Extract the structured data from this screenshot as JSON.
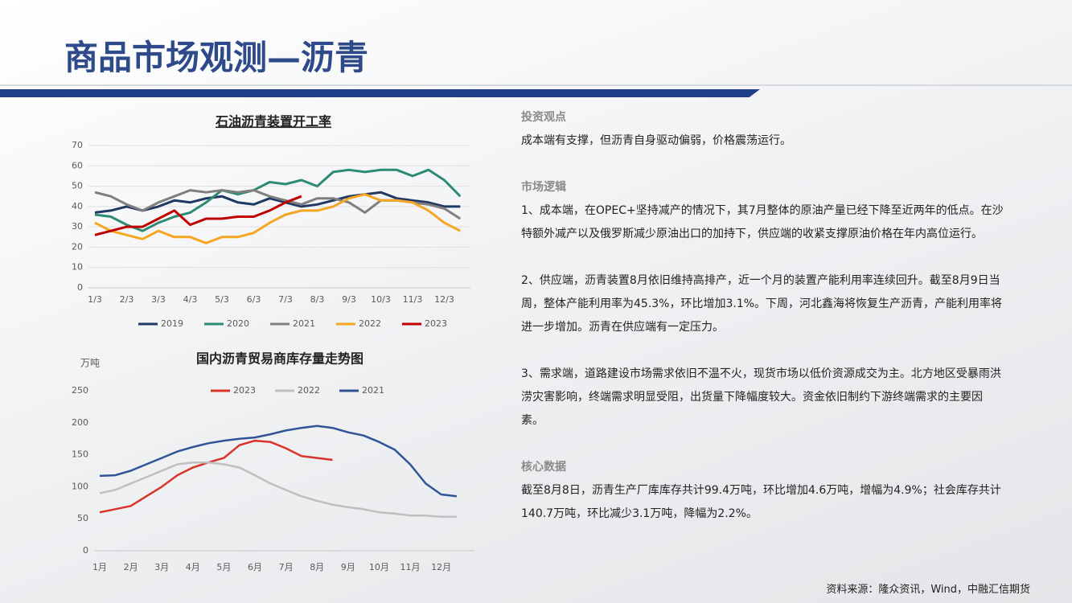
{
  "title": "商品市场观测—沥青",
  "source": "资料来源：隆众资讯，Wind，中融汇信期货",
  "sections": [
    {
      "heading": "投资观点",
      "paragraphs": [
        "成本端有支撑，但沥青自身驱动偏弱，价格震荡运行。"
      ]
    },
    {
      "heading": "市场逻辑",
      "paragraphs": [
        "1、成本端，在OPEC+坚持减产的情况下，其7月整体的原油产量已经下降至近两年的低点。在沙特额外减产以及俄罗斯减少原油出口的加持下，供应端的收紧支撑原油价格在年内高位运行。",
        "2、供应端，沥青装置8月依旧维持高排产，近一个月的装置产能利用率连续回升。截至8月9日当周，整体产能利用率为45.3%，环比增加3.1%。下周，河北鑫海将恢复生产沥青，产能利用率将进一步增加。沥青在供应端有一定压力。",
        "3、需求端，道路建设市场需求依旧不温不火，现货市场以低价资源成交为主。北方地区受暴雨洪涝灾害影响，终端需求明显受阻，出货量下降幅度较大。资金依旧制约下游终端需求的主要因素。"
      ]
    },
    {
      "heading": "核心数据",
      "paragraphs": [
        "截至8月8日，沥青生产厂库库存共计99.4万吨，环比增加4.6万吨，增幅为4.9%；社会库存共计140.7万吨，环比减少3.1万吨，降幅为2.2%。"
      ]
    }
  ],
  "chart_data": [
    {
      "type": "line",
      "title": "石油沥青装置开工率",
      "categories": [
        "1/3",
        null,
        "2/3",
        null,
        "3/3",
        null,
        "4/3",
        null,
        "5/3",
        null,
        "6/3",
        null,
        "7/3",
        null,
        "8/3",
        null,
        "9/3",
        null,
        "10/3",
        null,
        "11/3",
        null,
        "12/3",
        null
      ],
      "ylim": [
        0,
        70
      ],
      "yticks": [
        0,
        10,
        20,
        30,
        40,
        50,
        60,
        70
      ],
      "grid": true,
      "legend": "bottom",
      "series": [
        {
          "name": "2019",
          "color": "#1f3864",
          "values": [
            37,
            38,
            40,
            38,
            40,
            43,
            42,
            44,
            45,
            42,
            41,
            44,
            42,
            40,
            41,
            43,
            45,
            46,
            47,
            44,
            43,
            42,
            40,
            40
          ]
        },
        {
          "name": "2020",
          "color": "#2e8b73",
          "values": [
            36,
            35,
            31,
            28,
            32,
            35,
            37,
            42,
            48,
            46,
            48,
            52,
            51,
            53,
            50,
            57,
            58,
            57,
            58,
            58,
            55,
            58,
            53,
            45
          ]
        },
        {
          "name": "2021",
          "color": "#7f7f7f",
          "values": [
            47,
            45,
            41,
            38,
            42,
            45,
            48,
            47,
            48,
            47,
            48,
            45,
            43,
            41,
            44,
            44,
            42,
            37,
            43,
            43,
            42,
            41,
            39,
            34
          ]
        },
        {
          "name": "2022",
          "color": "#f5a623",
          "values": [
            32,
            28,
            26,
            24,
            28,
            25,
            25,
            22,
            25,
            25,
            27,
            32,
            36,
            38,
            38,
            40,
            44,
            46,
            43,
            43,
            42,
            38,
            32,
            28
          ]
        },
        {
          "name": "2023",
          "color": "#c00000",
          "values": [
            26,
            28,
            30,
            30,
            34,
            38,
            31,
            34,
            34,
            35,
            35,
            38,
            42,
            45,
            null,
            null,
            null,
            null,
            null,
            null,
            null,
            null,
            null,
            null
          ]
        }
      ]
    },
    {
      "type": "line",
      "title": "国内沥青贸易商库存量走势图",
      "y_label": "万吨",
      "categories": [
        "1月",
        null,
        "2月",
        null,
        "3月",
        null,
        "4月",
        null,
        "5月",
        null,
        "6月",
        null,
        "7月",
        null,
        "8月",
        null,
        "9月",
        null,
        "10月",
        null,
        "11月",
        null,
        "12月",
        null
      ],
      "ylim": [
        0,
        250
      ],
      "yticks": [
        0,
        50,
        100,
        150,
        200,
        250
      ],
      "grid": false,
      "legend": "top",
      "series": [
        {
          "name": "2023",
          "color": "#d9342b",
          "values": [
            60,
            65,
            70,
            85,
            100,
            118,
            130,
            138,
            145,
            165,
            172,
            170,
            160,
            148,
            145,
            142,
            null,
            null,
            null,
            null,
            null,
            null,
            null,
            null
          ]
        },
        {
          "name": "2022",
          "color": "#bfbfbf",
          "values": [
            90,
            95,
            105,
            115,
            125,
            135,
            138,
            138,
            135,
            130,
            118,
            105,
            95,
            85,
            78,
            72,
            68,
            65,
            60,
            58,
            55,
            55,
            53,
            53
          ]
        },
        {
          "name": "2021",
          "color": "#2f5597",
          "values": [
            117,
            118,
            125,
            135,
            145,
            155,
            162,
            168,
            172,
            175,
            177,
            182,
            188,
            192,
            195,
            192,
            185,
            180,
            170,
            158,
            135,
            105,
            88,
            85
          ]
        }
      ]
    }
  ]
}
